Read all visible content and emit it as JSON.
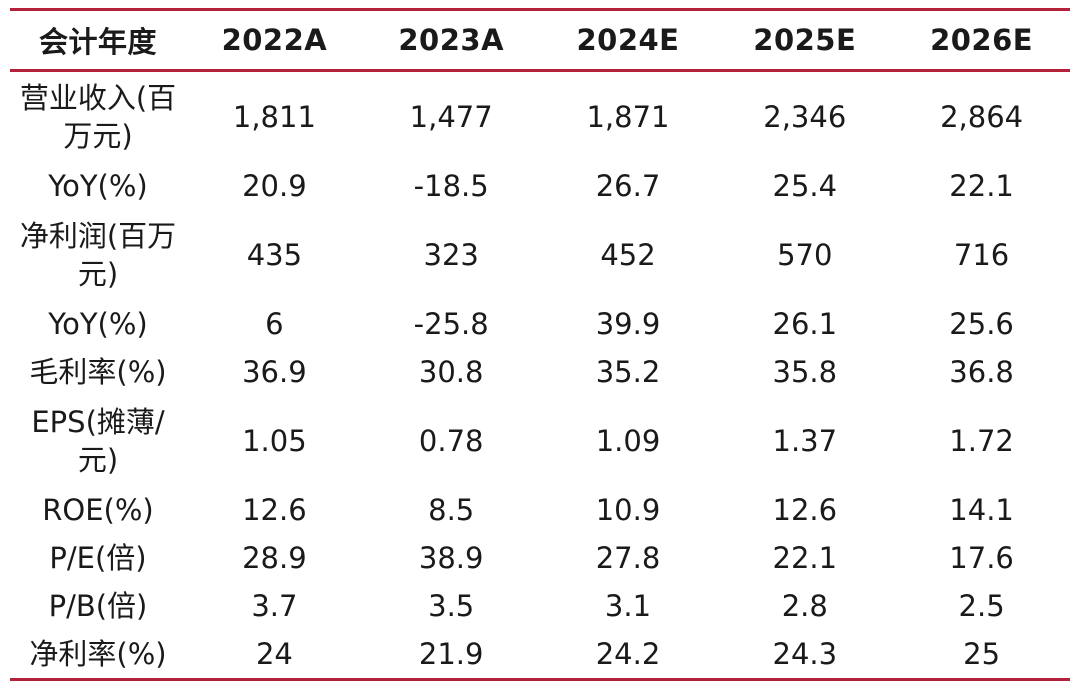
{
  "accent_color": "#b3213a",
  "header": [
    "会计年度",
    "2022A",
    "2023A",
    "2024E",
    "2025E",
    "2026E"
  ],
  "rows": [
    {
      "label": "营业收入(百万元)",
      "values": [
        "1,811",
        "1,477",
        "1,871",
        "2,346",
        "2,864"
      ]
    },
    {
      "label": "YoY(%)",
      "values": [
        "20.9",
        "-18.5",
        "26.7",
        "25.4",
        "22.1"
      ]
    },
    {
      "label": "净利润(百万元)",
      "values": [
        "435",
        "323",
        "452",
        "570",
        "716"
      ]
    },
    {
      "label": "YoY(%)",
      "values": [
        "6",
        "-25.8",
        "39.9",
        "26.1",
        "25.6"
      ]
    },
    {
      "label": "毛利率(%)",
      "values": [
        "36.9",
        "30.8",
        "35.2",
        "35.8",
        "36.8"
      ]
    },
    {
      "label": "EPS(摊薄/元)",
      "values": [
        "1.05",
        "0.78",
        "1.09",
        "1.37",
        "1.72"
      ]
    },
    {
      "label": "ROE(%)",
      "values": [
        "12.6",
        "8.5",
        "10.9",
        "12.6",
        "14.1"
      ]
    },
    {
      "label": "P/E(倍)",
      "values": [
        "28.9",
        "38.9",
        "27.8",
        "22.1",
        "17.6"
      ]
    },
    {
      "label": "P/B(倍)",
      "values": [
        "3.7",
        "3.5",
        "3.1",
        "2.8",
        "2.5"
      ]
    },
    {
      "label": "净利率(%)",
      "values": [
        "24",
        "21.9",
        "24.2",
        "24.3",
        "25"
      ]
    }
  ]
}
